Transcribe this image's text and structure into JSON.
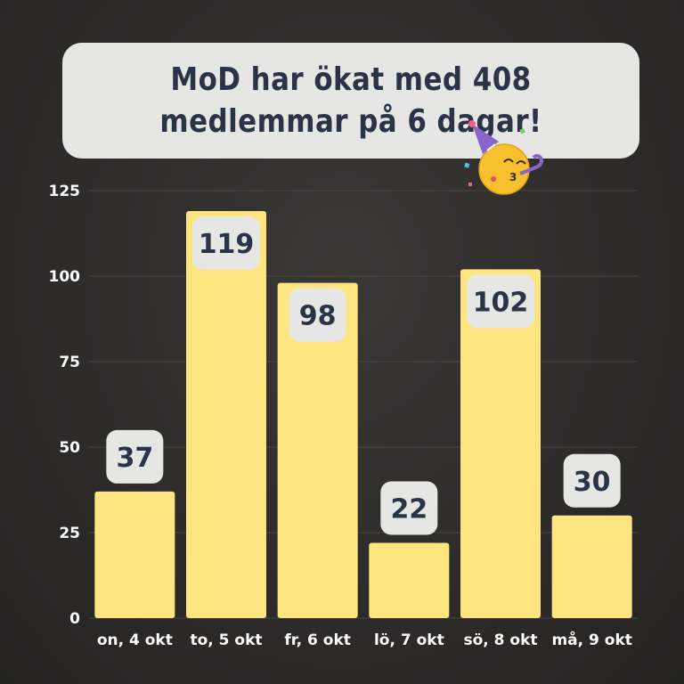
{
  "title": "MoD har ökat med 408 medlemmar på 6 dagar!",
  "chart_data": {
    "type": "bar",
    "categories": [
      "on, 4 okt",
      "to, 5 okt",
      "fr, 6 okt",
      "lö, 7 okt",
      "sö, 8 okt",
      "må, 9 okt"
    ],
    "values": [
      37,
      119,
      98,
      22,
      102,
      30
    ],
    "value_labels": [
      "37",
      "119",
      "98",
      "22",
      "102",
      "30"
    ],
    "yticks": [
      0,
      25,
      50,
      75,
      100,
      125
    ],
    "ylim": [
      0,
      125
    ],
    "grid": true,
    "bar_color": "#ffe580",
    "label_box_color": "#e6e6e4",
    "label_text_color": "#2a3446",
    "background_color": "#2f2d2c",
    "decoration_icon": "party-face-emoji-icon"
  }
}
